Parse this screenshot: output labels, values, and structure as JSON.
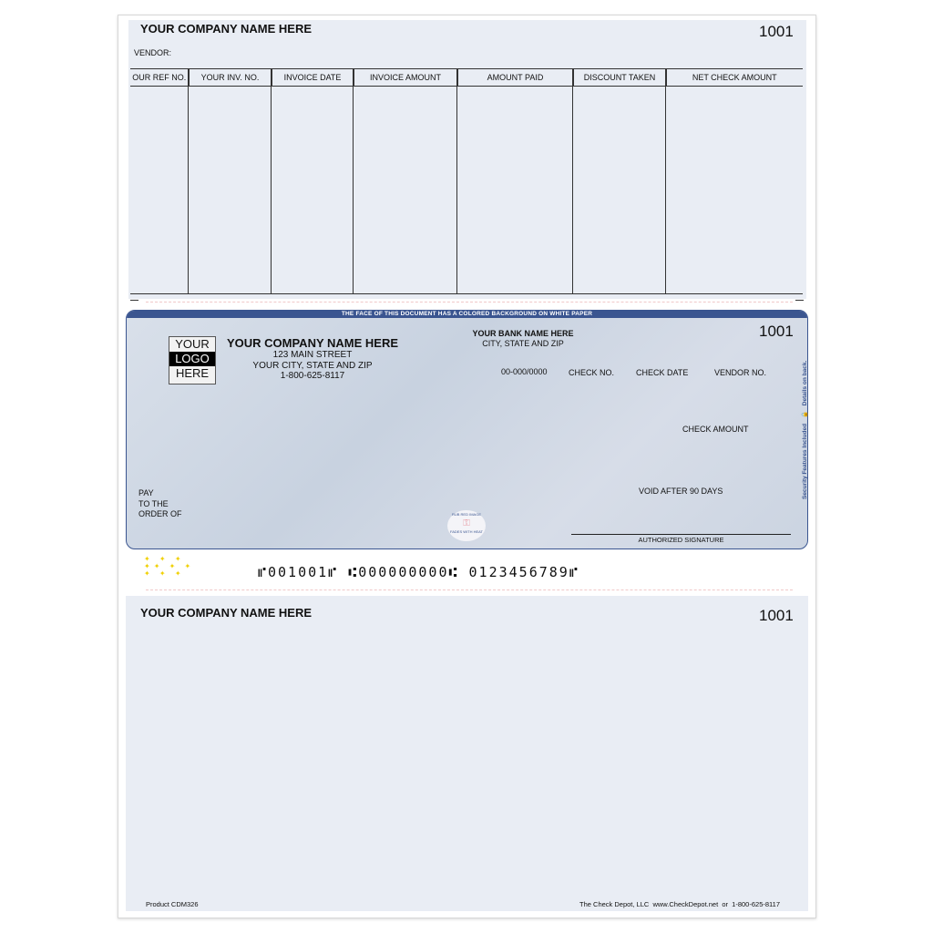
{
  "stub_top": {
    "company": "YOUR COMPANY NAME HERE",
    "check_number": "1001",
    "vendor_label": "VENDOR:",
    "columns": [
      "OUR REF NO.",
      "YOUR INV. NO.",
      "INVOICE DATE",
      "INVOICE AMOUNT",
      "AMOUNT PAID",
      "DISCOUNT TAKEN",
      "NET CHECK AMOUNT"
    ]
  },
  "check": {
    "banner": "THE FACE OF THIS DOCUMENT HAS A COLORED BACKGROUND ON WHITE PAPER",
    "logo": [
      "YOUR",
      "LOGO",
      "HERE"
    ],
    "company": "YOUR COMPANY NAME HERE",
    "street": "123 MAIN STREET",
    "city": "YOUR CITY, STATE AND ZIP",
    "phone": "1-800-625-8117",
    "bank": "YOUR BANK NAME HERE",
    "bank_city": "CITY, STATE AND ZIP",
    "fraction": "00-000/0000",
    "check_no_label": "CHECK NO.",
    "check_date_label": "CHECK DATE",
    "vendor_no_label": "VENDOR NO.",
    "check_number": "1001",
    "check_amount_label": "CHECK AMOUNT",
    "void": "VOID AFTER 90 DAYS",
    "pay": [
      "PAY",
      "TO THE",
      "ORDER OF"
    ],
    "signature_label": "AUTHORIZED SIGNATURE",
    "seal_top": "RUB RED IMAGE",
    "seal_bottom": "FADES WITH HEAT",
    "security_side": "Security Features Included",
    "details_side": "Details on back.",
    "micr": "⑈001001⑈ ⑆000000000⑆ 0123456789⑈"
  },
  "stub_bottom": {
    "company": "YOUR COMPANY NAME HERE",
    "check_number": "1001"
  },
  "footer": {
    "product": "Product CDM326",
    "vendor": "The Check Depot, LLC  www.CheckDepot.net  or  1-800-625-8117"
  },
  "colors": {
    "check_border": "#3a5590",
    "stub_bg": "#e9edf4"
  }
}
